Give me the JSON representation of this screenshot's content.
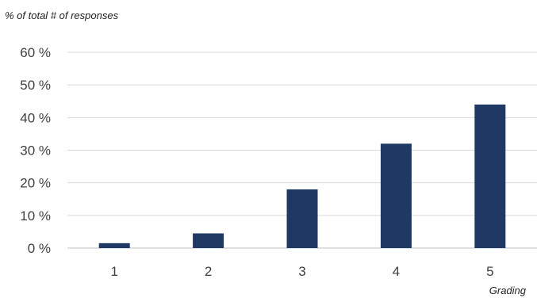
{
  "chart_data": {
    "type": "bar",
    "title": "",
    "ylabel": "% of total # of responses",
    "xlabel": "Grading",
    "categories": [
      "1",
      "2",
      "3",
      "4",
      "5"
    ],
    "values": [
      1.5,
      4.5,
      18,
      32,
      44
    ],
    "ylim": [
      0,
      60
    ],
    "yticks": [
      0,
      10,
      20,
      30,
      40,
      50,
      60
    ],
    "ytick_labels": [
      "0 %",
      "10 %",
      "20 %",
      "30 %",
      "40 %",
      "50 %",
      "60 %"
    ],
    "grid": true,
    "legend": "none",
    "colors": {
      "bar": "#1f3864",
      "grid": "#d9d9d9",
      "axis": "#bfbfbf"
    }
  }
}
